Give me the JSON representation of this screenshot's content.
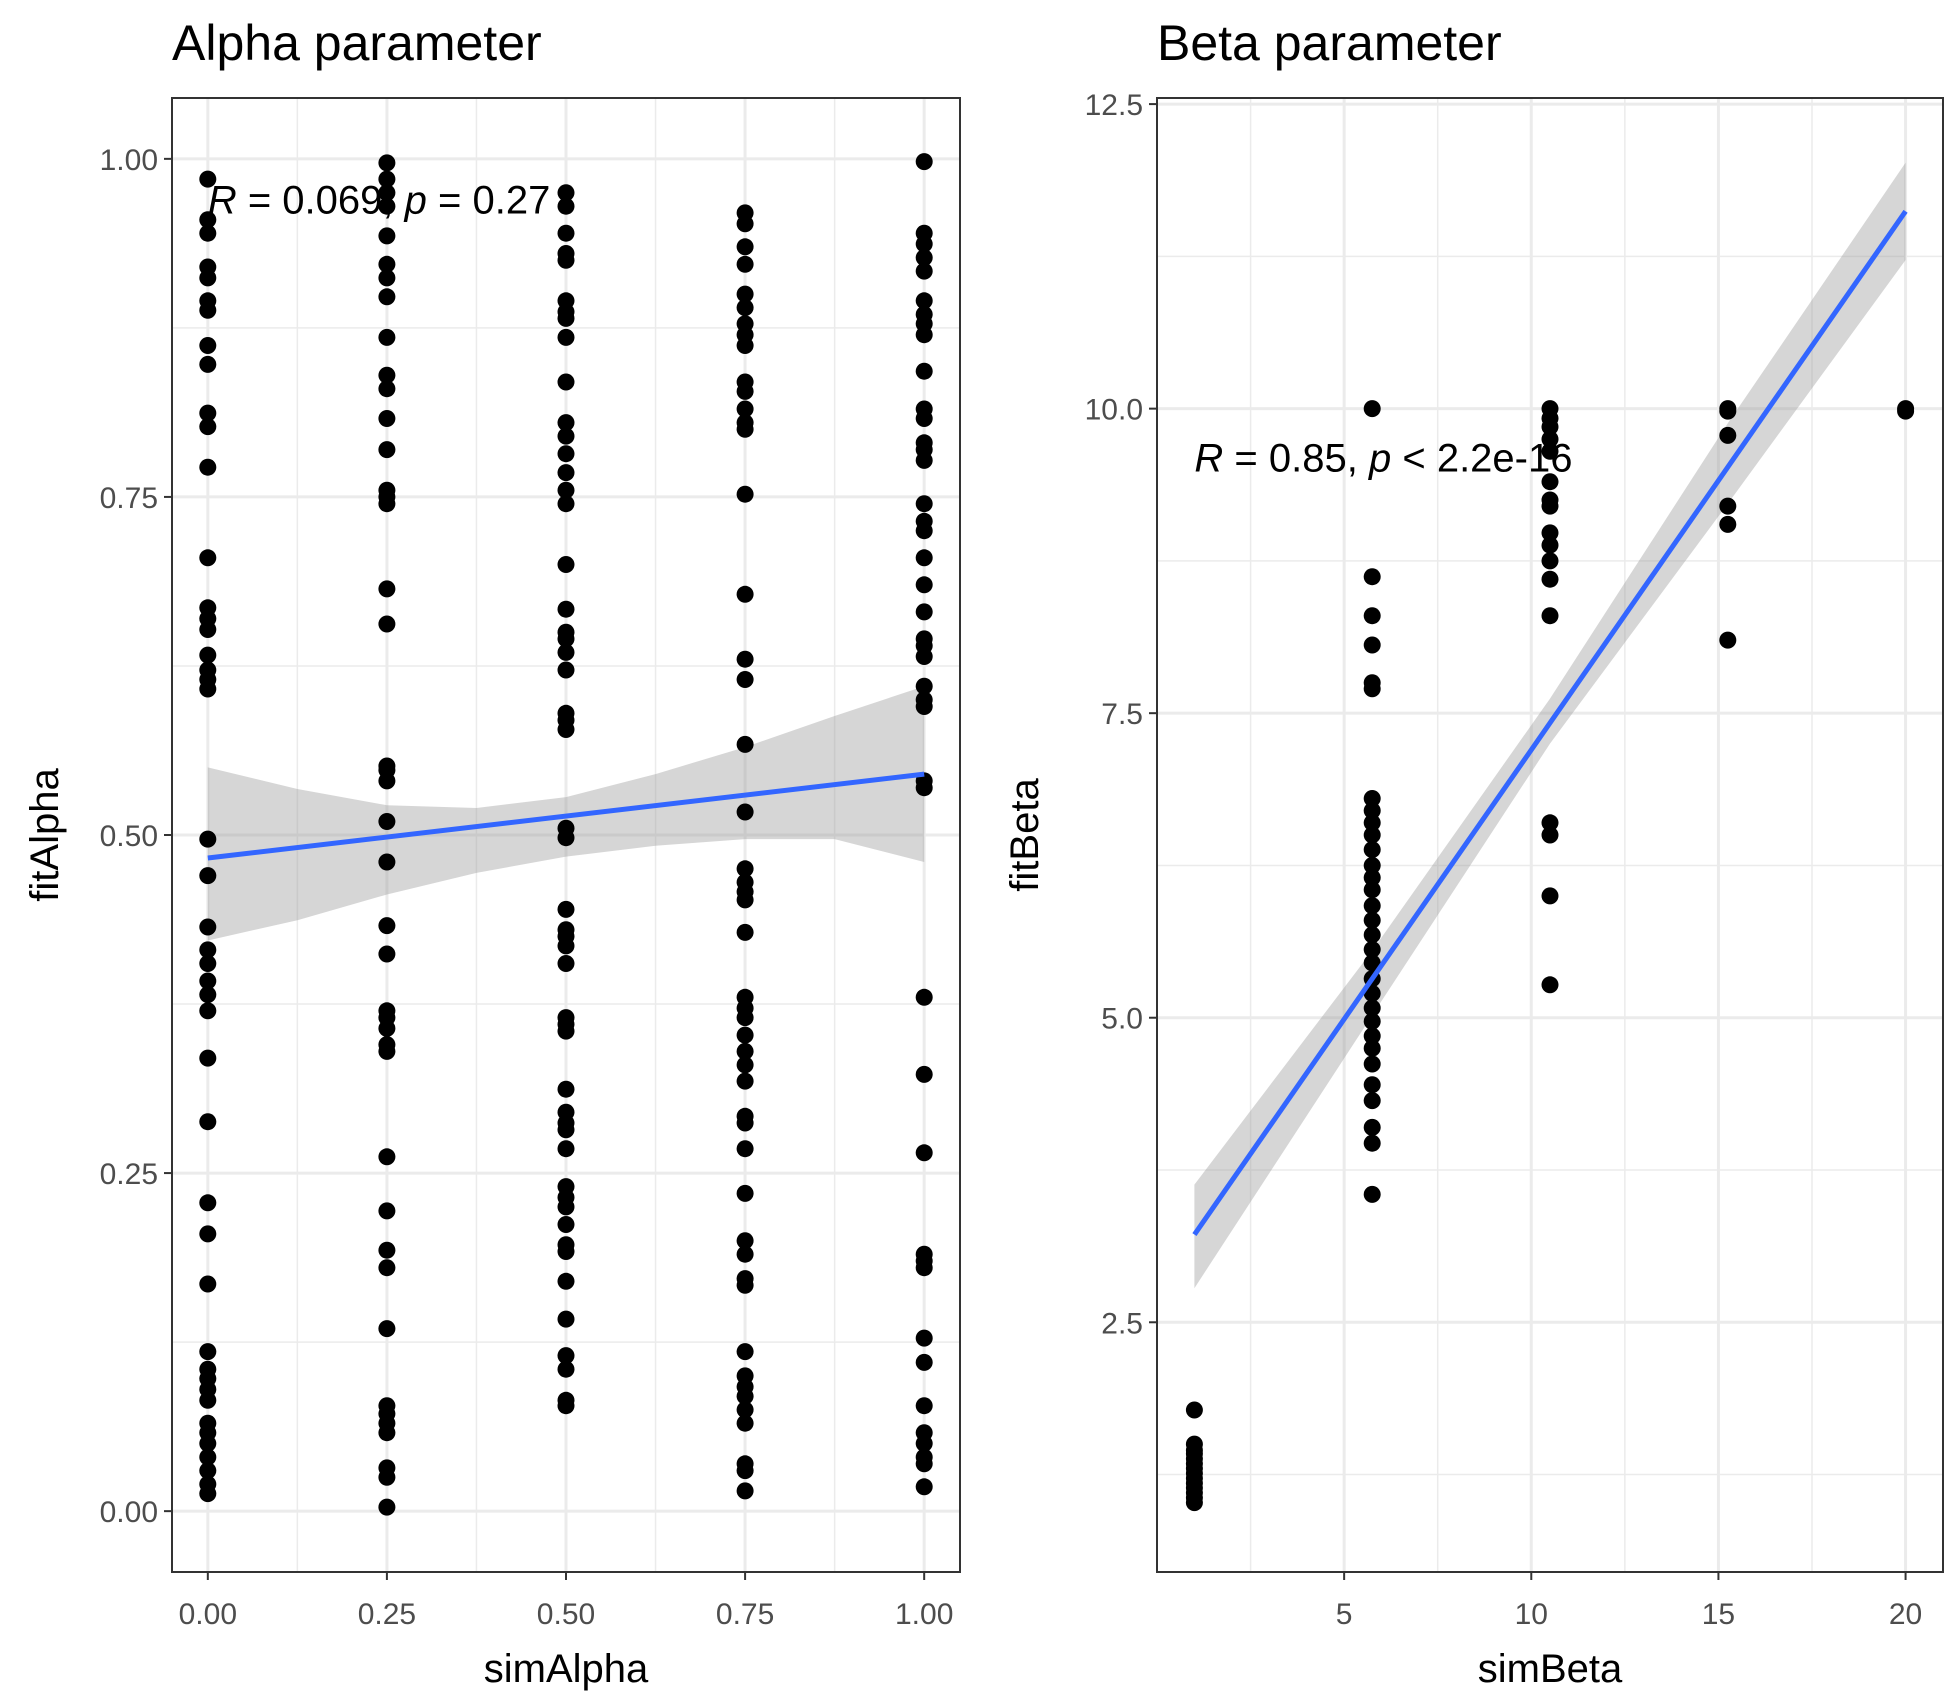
{
  "chart_data": [
    {
      "type": "scatter",
      "title": "Alpha parameter",
      "xlabel": "simAlpha",
      "ylabel": "fitAlpha",
      "xlim": [
        -0.05,
        1.05
      ],
      "ylim": [
        -0.045,
        1.045
      ],
      "xticks": [
        0,
        0.25,
        0.5,
        0.75,
        1
      ],
      "xtick_labels": [
        "0.00",
        "0.25",
        "0.50",
        "0.75",
        "1.00"
      ],
      "yticks": [
        0,
        0.25,
        0.5,
        0.75,
        1
      ],
      "ytick_labels": [
        "0.00",
        "0.25",
        "0.50",
        "0.75",
        "1.00"
      ],
      "grid": true,
      "annotation": {
        "r_sym": "R",
        "r_rest": " = 0.069, ",
        "p_sym": "p",
        "p_rest": " = 0.27",
        "x": 0.0,
        "y": 0.97
      },
      "regression": {
        "color": "#3366ff",
        "x0": 0,
        "y0": 0.483,
        "x1": 1,
        "y1": 0.545
      },
      "confidence_band": [
        [
          0,
          0.422,
          0.55
        ],
        [
          0.125,
          0.437,
          0.534
        ],
        [
          0.25,
          0.456,
          0.522
        ],
        [
          0.375,
          0.472,
          0.52
        ],
        [
          0.5,
          0.484,
          0.528
        ],
        [
          0.625,
          0.492,
          0.545
        ],
        [
          0.75,
          0.497,
          0.565
        ],
        [
          0.875,
          0.497,
          0.588
        ],
        [
          1,
          0.48,
          0.61
        ]
      ],
      "points": [
        [
          0,
          0.985
        ],
        [
          0,
          0.955
        ],
        [
          0,
          0.945
        ],
        [
          0,
          0.92
        ],
        [
          0,
          0.912
        ],
        [
          0,
          0.895
        ],
        [
          0,
          0.888
        ],
        [
          0,
          0.862
        ],
        [
          0,
          0.848
        ],
        [
          0,
          0.812
        ],
        [
          0,
          0.802
        ],
        [
          0,
          0.772
        ],
        [
          0,
          0.705
        ],
        [
          0,
          0.668
        ],
        [
          0,
          0.66
        ],
        [
          0,
          0.652
        ],
        [
          0,
          0.633
        ],
        [
          0,
          0.622
        ],
        [
          0,
          0.615
        ],
        [
          0,
          0.608
        ],
        [
          0,
          0.497
        ],
        [
          0,
          0.47
        ],
        [
          0,
          0.432
        ],
        [
          0,
          0.415
        ],
        [
          0,
          0.405
        ],
        [
          0,
          0.392
        ],
        [
          0,
          0.382
        ],
        [
          0,
          0.37
        ],
        [
          0,
          0.335
        ],
        [
          0,
          0.288
        ],
        [
          0,
          0.228
        ],
        [
          0,
          0.205
        ],
        [
          0,
          0.168
        ],
        [
          0,
          0.118
        ],
        [
          0,
          0.105
        ],
        [
          0,
          0.098
        ],
        [
          0,
          0.09
        ],
        [
          0,
          0.082
        ],
        [
          0,
          0.065
        ],
        [
          0,
          0.058
        ],
        [
          0,
          0.05
        ],
        [
          0,
          0.04
        ],
        [
          0,
          0.03
        ],
        [
          0,
          0.02
        ],
        [
          0,
          0.013
        ],
        [
          0.25,
          0.997
        ],
        [
          0.25,
          0.985
        ],
        [
          0.25,
          0.975
        ],
        [
          0.25,
          0.965
        ],
        [
          0.25,
          0.943
        ],
        [
          0.25,
          0.922
        ],
        [
          0.25,
          0.912
        ],
        [
          0.25,
          0.898
        ],
        [
          0.25,
          0.868
        ],
        [
          0.25,
          0.84
        ],
        [
          0.25,
          0.83
        ],
        [
          0.25,
          0.808
        ],
        [
          0.25,
          0.785
        ],
        [
          0.25,
          0.755
        ],
        [
          0.25,
          0.75
        ],
        [
          0.25,
          0.745
        ],
        [
          0.25,
          0.682
        ],
        [
          0.25,
          0.656
        ],
        [
          0.25,
          0.551
        ],
        [
          0.25,
          0.548
        ],
        [
          0.25,
          0.54
        ],
        [
          0.25,
          0.51
        ],
        [
          0.25,
          0.48
        ],
        [
          0.25,
          0.433
        ],
        [
          0.25,
          0.412
        ],
        [
          0.25,
          0.37
        ],
        [
          0.25,
          0.365
        ],
        [
          0.25,
          0.357
        ],
        [
          0.25,
          0.345
        ],
        [
          0.25,
          0.34
        ],
        [
          0.25,
          0.262
        ],
        [
          0.25,
          0.222
        ],
        [
          0.25,
          0.193
        ],
        [
          0.25,
          0.18
        ],
        [
          0.25,
          0.135
        ],
        [
          0.25,
          0.078
        ],
        [
          0.25,
          0.072
        ],
        [
          0.25,
          0.065
        ],
        [
          0.25,
          0.058
        ],
        [
          0.25,
          0.032
        ],
        [
          0.25,
          0.025
        ],
        [
          0.25,
          0.003
        ],
        [
          0.5,
          0.975
        ],
        [
          0.5,
          0.965
        ],
        [
          0.5,
          0.945
        ],
        [
          0.5,
          0.93
        ],
        [
          0.5,
          0.925
        ],
        [
          0.5,
          0.895
        ],
        [
          0.5,
          0.887
        ],
        [
          0.5,
          0.882
        ],
        [
          0.5,
          0.868
        ],
        [
          0.5,
          0.835
        ],
        [
          0.5,
          0.805
        ],
        [
          0.5,
          0.795
        ],
        [
          0.5,
          0.782
        ],
        [
          0.5,
          0.768
        ],
        [
          0.5,
          0.755
        ],
        [
          0.5,
          0.745
        ],
        [
          0.5,
          0.7
        ],
        [
          0.5,
          0.667
        ],
        [
          0.5,
          0.65
        ],
        [
          0.5,
          0.645
        ],
        [
          0.5,
          0.635
        ],
        [
          0.5,
          0.622
        ],
        [
          0.5,
          0.59
        ],
        [
          0.5,
          0.585
        ],
        [
          0.5,
          0.578
        ],
        [
          0.5,
          0.505
        ],
        [
          0.5,
          0.498
        ],
        [
          0.5,
          0.445
        ],
        [
          0.5,
          0.43
        ],
        [
          0.5,
          0.425
        ],
        [
          0.5,
          0.418
        ],
        [
          0.5,
          0.405
        ],
        [
          0.5,
          0.365
        ],
        [
          0.5,
          0.36
        ],
        [
          0.5,
          0.355
        ],
        [
          0.5,
          0.312
        ],
        [
          0.5,
          0.295
        ],
        [
          0.5,
          0.287
        ],
        [
          0.5,
          0.282
        ],
        [
          0.5,
          0.268
        ],
        [
          0.5,
          0.24
        ],
        [
          0.5,
          0.232
        ],
        [
          0.5,
          0.225
        ],
        [
          0.5,
          0.212
        ],
        [
          0.5,
          0.197
        ],
        [
          0.5,
          0.192
        ],
        [
          0.5,
          0.17
        ],
        [
          0.5,
          0.142
        ],
        [
          0.5,
          0.115
        ],
        [
          0.5,
          0.105
        ],
        [
          0.5,
          0.082
        ],
        [
          0.5,
          0.078
        ],
        [
          0.75,
          0.96
        ],
        [
          0.75,
          0.952
        ],
        [
          0.75,
          0.935
        ],
        [
          0.75,
          0.922
        ],
        [
          0.75,
          0.9
        ],
        [
          0.75,
          0.89
        ],
        [
          0.75,
          0.878
        ],
        [
          0.75,
          0.87
        ],
        [
          0.75,
          0.862
        ],
        [
          0.75,
          0.835
        ],
        [
          0.75,
          0.828
        ],
        [
          0.75,
          0.815
        ],
        [
          0.75,
          0.805
        ],
        [
          0.75,
          0.8
        ],
        [
          0.75,
          0.752
        ],
        [
          0.75,
          0.678
        ],
        [
          0.75,
          0.63
        ],
        [
          0.75,
          0.615
        ],
        [
          0.75,
          0.567
        ],
        [
          0.75,
          0.517
        ],
        [
          0.75,
          0.475
        ],
        [
          0.75,
          0.465
        ],
        [
          0.75,
          0.458
        ],
        [
          0.75,
          0.452
        ],
        [
          0.75,
          0.428
        ],
        [
          0.75,
          0.38
        ],
        [
          0.75,
          0.372
        ],
        [
          0.75,
          0.365
        ],
        [
          0.75,
          0.352
        ],
        [
          0.75,
          0.34
        ],
        [
          0.75,
          0.33
        ],
        [
          0.75,
          0.318
        ],
        [
          0.75,
          0.292
        ],
        [
          0.75,
          0.287
        ],
        [
          0.75,
          0.268
        ],
        [
          0.75,
          0.235
        ],
        [
          0.75,
          0.2
        ],
        [
          0.75,
          0.19
        ],
        [
          0.75,
          0.172
        ],
        [
          0.75,
          0.167
        ],
        [
          0.75,
          0.118
        ],
        [
          0.75,
          0.1
        ],
        [
          0.75,
          0.092
        ],
        [
          0.75,
          0.085
        ],
        [
          0.75,
          0.075
        ],
        [
          0.75,
          0.065
        ],
        [
          0.75,
          0.035
        ],
        [
          0.75,
          0.03
        ],
        [
          0.75,
          0.015
        ],
        [
          1,
          0.998
        ],
        [
          1,
          0.945
        ],
        [
          1,
          0.937
        ],
        [
          1,
          0.927
        ],
        [
          1,
          0.917
        ],
        [
          1,
          0.895
        ],
        [
          1,
          0.885
        ],
        [
          1,
          0.878
        ],
        [
          1,
          0.87
        ],
        [
          1,
          0.843
        ],
        [
          1,
          0.815
        ],
        [
          1,
          0.808
        ],
        [
          1,
          0.79
        ],
        [
          1,
          0.785
        ],
        [
          1,
          0.777
        ],
        [
          1,
          0.745
        ],
        [
          1,
          0.732
        ],
        [
          1,
          0.725
        ],
        [
          1,
          0.705
        ],
        [
          1,
          0.685
        ],
        [
          1,
          0.665
        ],
        [
          1,
          0.645
        ],
        [
          1,
          0.64
        ],
        [
          1,
          0.632
        ],
        [
          1,
          0.61
        ],
        [
          1,
          0.6
        ],
        [
          1,
          0.595
        ],
        [
          1,
          0.54
        ],
        [
          1,
          0.535
        ],
        [
          1,
          0.38
        ],
        [
          1,
          0.323
        ],
        [
          1,
          0.265
        ],
        [
          1,
          0.19
        ],
        [
          1,
          0.185
        ],
        [
          1,
          0.18
        ],
        [
          1,
          0.128
        ],
        [
          1,
          0.11
        ],
        [
          1,
          0.078
        ],
        [
          1,
          0.058
        ],
        [
          1,
          0.05
        ],
        [
          1,
          0.04
        ],
        [
          1,
          0.035
        ],
        [
          1,
          0.018
        ]
      ]
    },
    {
      "type": "scatter",
      "title": "Beta parameter",
      "xlabel": "simBeta",
      "ylabel": "fitBeta",
      "xlim": [
        0.0,
        21.0
      ],
      "ylim": [
        0.45,
        12.55
      ],
      "xticks": [
        5,
        10,
        15,
        20
      ],
      "xtick_labels": [
        "5",
        "10",
        "15",
        "20"
      ],
      "yticks": [
        2.5,
        5,
        7.5,
        10,
        12.5
      ],
      "ytick_labels": [
        "2.5",
        "5.0",
        "7.5",
        "10.0",
        "12.5"
      ],
      "grid": true,
      "annotation": {
        "r_sym": "R",
        "r_rest": " = 0.85, ",
        "p_sym": "p",
        "p_rest": " < 2.2e-16",
        "x": 1.0,
        "y": 9.6
      },
      "regression": {
        "color": "#3366ff",
        "x0": 1,
        "y0": 3.22,
        "x1": 20,
        "y1": 11.62
      },
      "confidence_band": [
        [
          1,
          2.78,
          3.63
        ],
        [
          5.75,
          5.02,
          5.55
        ],
        [
          10.5,
          7.25,
          7.62
        ],
        [
          15.25,
          9.22,
          9.88
        ],
        [
          20,
          11.22,
          12.02
        ]
      ],
      "points": [
        [
          1,
          1.78
        ],
        [
          1,
          1.5
        ],
        [
          1,
          1.45
        ],
        [
          1,
          1.42
        ],
        [
          1,
          1.38
        ],
        [
          1,
          1.34
        ],
        [
          1,
          1.3
        ],
        [
          1,
          1.26
        ],
        [
          1,
          1.22
        ],
        [
          1,
          1.18
        ],
        [
          1,
          1.14
        ],
        [
          1,
          1.1
        ],
        [
          1,
          1.06
        ],
        [
          1,
          1.02
        ],
        [
          5.75,
          10.0
        ],
        [
          5.75,
          8.62
        ],
        [
          5.75,
          8.3
        ],
        [
          5.75,
          8.06
        ],
        [
          5.75,
          7.75
        ],
        [
          5.75,
          7.7
        ],
        [
          5.75,
          6.8
        ],
        [
          5.75,
          6.7
        ],
        [
          5.75,
          6.6
        ],
        [
          5.75,
          6.5
        ],
        [
          5.75,
          6.38
        ],
        [
          5.75,
          6.25
        ],
        [
          5.75,
          6.15
        ],
        [
          5.75,
          6.05
        ],
        [
          5.75,
          5.92
        ],
        [
          5.75,
          5.8
        ],
        [
          5.75,
          5.68
        ],
        [
          5.75,
          5.56
        ],
        [
          5.75,
          5.45
        ],
        [
          5.75,
          5.32
        ],
        [
          5.75,
          5.2
        ],
        [
          5.75,
          5.08
        ],
        [
          5.75,
          4.97
        ],
        [
          5.75,
          4.85
        ],
        [
          5.75,
          4.75
        ],
        [
          5.75,
          4.62
        ],
        [
          5.75,
          4.45
        ],
        [
          5.75,
          4.32
        ],
        [
          5.75,
          4.1
        ],
        [
          5.75,
          3.97
        ],
        [
          5.75,
          3.55
        ],
        [
          10.5,
          10.0
        ],
        [
          10.5,
          9.92
        ],
        [
          10.5,
          9.85
        ],
        [
          10.5,
          9.75
        ],
        [
          10.5,
          9.65
        ],
        [
          10.5,
          9.4
        ],
        [
          10.5,
          9.25
        ],
        [
          10.5,
          9.2
        ],
        [
          10.5,
          8.98
        ],
        [
          10.5,
          8.88
        ],
        [
          10.5,
          8.75
        ],
        [
          10.5,
          8.6
        ],
        [
          10.5,
          8.3
        ],
        [
          10.5,
          6.6
        ],
        [
          10.5,
          6.5
        ],
        [
          10.5,
          6.0
        ],
        [
          10.5,
          5.27
        ],
        [
          15.25,
          10.0
        ],
        [
          15.25,
          9.98
        ],
        [
          15.25,
          9.78
        ],
        [
          15.25,
          9.2
        ],
        [
          15.25,
          9.05
        ],
        [
          15.25,
          8.1
        ],
        [
          20,
          10.0
        ],
        [
          20,
          9.98
        ]
      ]
    }
  ]
}
